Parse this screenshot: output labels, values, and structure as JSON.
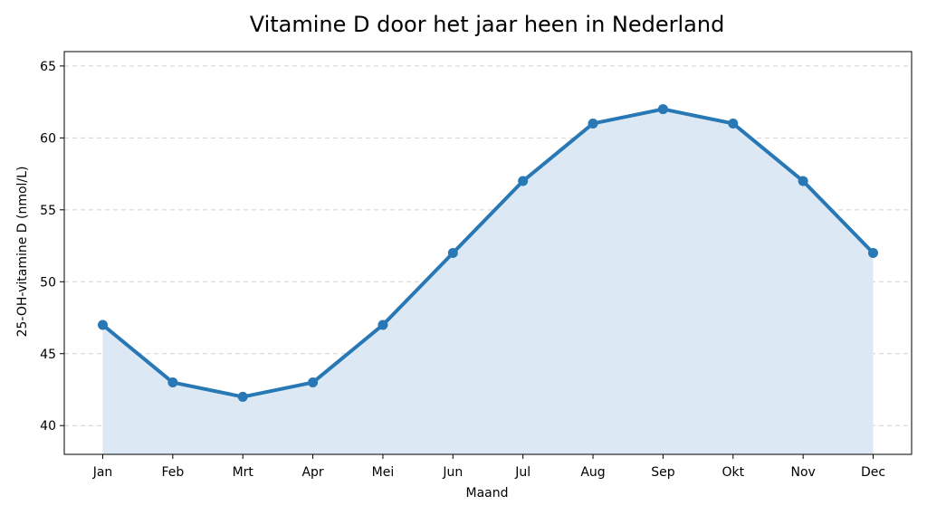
{
  "chart_data": {
    "type": "area",
    "title": "Vitamine D door het jaar heen in Nederland",
    "xlabel": "Maand",
    "ylabel": "25-OH-vitamine D (nmol/L)",
    "categories": [
      "Jan",
      "Feb",
      "Mrt",
      "Apr",
      "Mei",
      "Jun",
      "Jul",
      "Aug",
      "Sep",
      "Okt",
      "Nov",
      "Dec"
    ],
    "series": [
      {
        "values": [
          47,
          43,
          42,
          43,
          47,
          52,
          57,
          61,
          62,
          61,
          57,
          52
        ]
      }
    ],
    "ylim": [
      38,
      66
    ],
    "yticks": [
      "40",
      "45",
      "50",
      "55",
      "60",
      "65"
    ],
    "grid": "horizontal dashed",
    "colors": {
      "line": "#2878b5",
      "fill": "#dce8f3",
      "grid": "#d0d0d0"
    }
  }
}
